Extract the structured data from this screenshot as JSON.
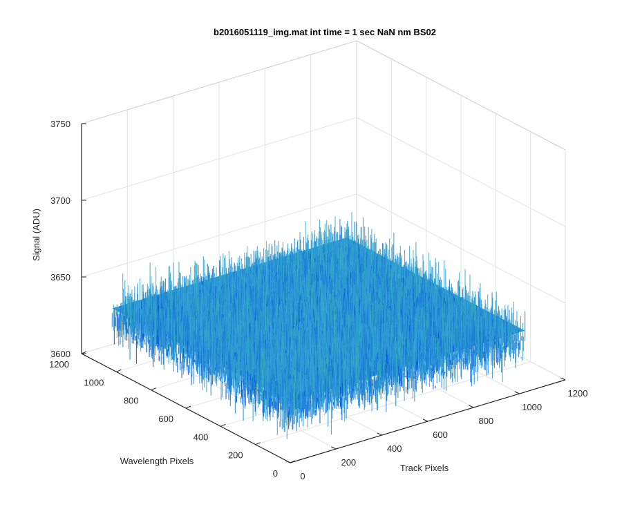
{
  "chart_data": {
    "type": "surface",
    "title": "b2016051119_img.mat int time = 1 sec  NaN nm BS02",
    "xlabel": "Track Pixels",
    "ylabel": "Wavelength Pixels",
    "zlabel": "Signal (ADU)",
    "xlim": [
      0,
      1200
    ],
    "ylim": [
      0,
      1200
    ],
    "zlim": [
      3600,
      3750
    ],
    "xticks": [
      "0",
      "200",
      "400",
      "600",
      "800",
      "1000",
      "1200"
    ],
    "yticks": [
      "0",
      "200",
      "400",
      "600",
      "800",
      "1000",
      "1200"
    ],
    "zticks": [
      "3600",
      "3650",
      "3700",
      "3750"
    ],
    "grid": true,
    "data_extent": {
      "x": [
        0,
        1024
      ],
      "y": [
        0,
        1024
      ]
    },
    "signal_mean": 3640,
    "signal_noise_range": [
      3610,
      3705
    ],
    "colormap": [
      "#0050d8",
      "#1a7fd6",
      "#2f9ad4",
      "#35aac6",
      "#45b8b4",
      "#7cc38a"
    ]
  }
}
